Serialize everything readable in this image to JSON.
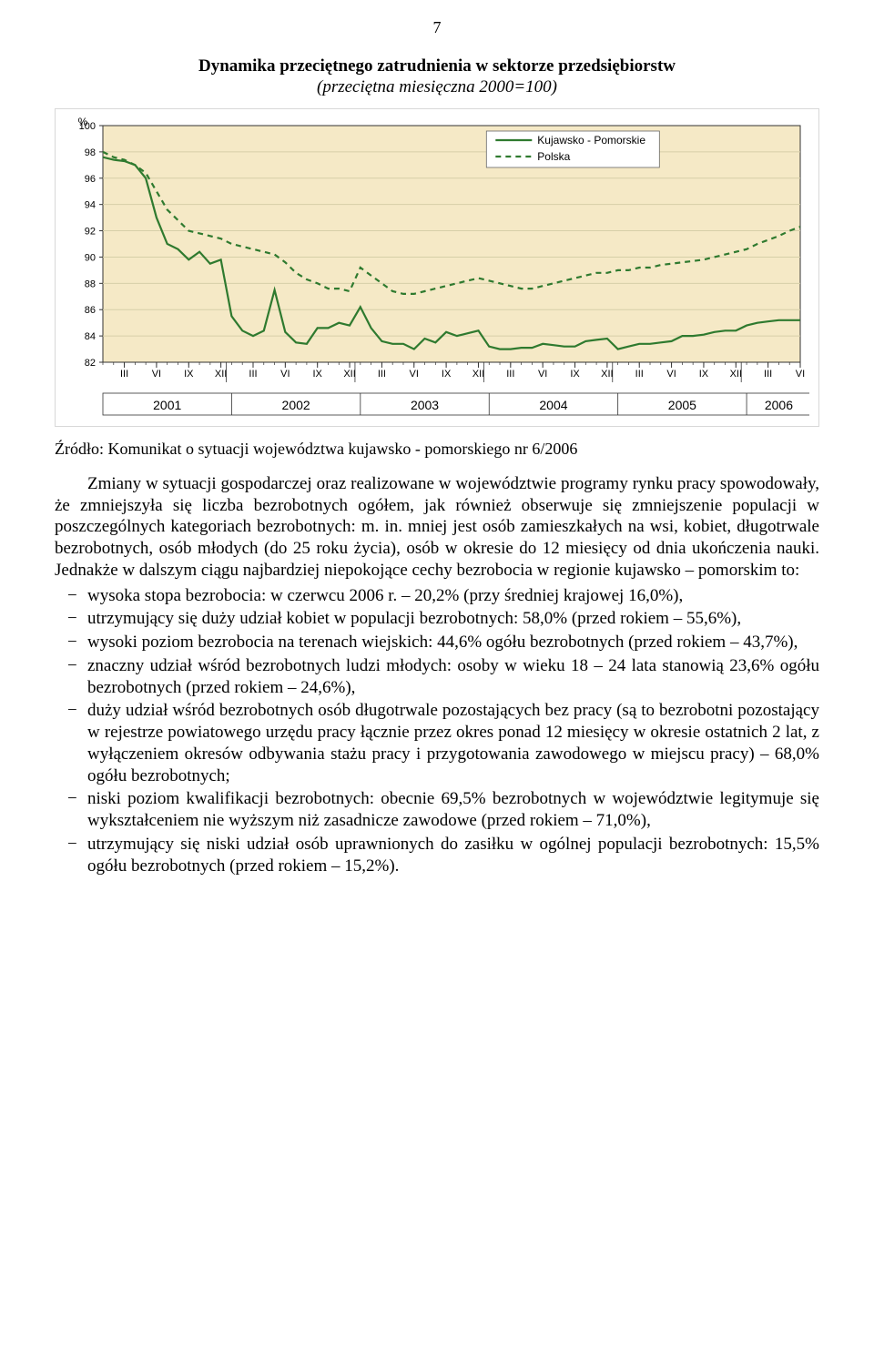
{
  "page_number": "7",
  "chart": {
    "type": "line",
    "title": "Dynamika przeciętnego zatrudnienia w sektorze przedsiębiorstw",
    "subtitle": "(przeciętna miesięczna 2000=100)",
    "y_axis": {
      "label": "%",
      "min": 82,
      "max": 100,
      "tick_step": 2,
      "ticks": [
        "82",
        "84",
        "86",
        "88",
        "90",
        "92",
        "94",
        "96",
        "98",
        "100"
      ]
    },
    "x_axis": {
      "ticks_per_year": [
        "III",
        "VI",
        "IX",
        "XII"
      ],
      "last_year_ticks": [
        "III",
        "VI"
      ],
      "years": [
        "2001",
        "2002",
        "2003",
        "2004",
        "2005",
        "2006"
      ]
    },
    "legend": [
      {
        "label": "Kujawsko - Pomorskie",
        "color": "#2f7a2f",
        "dash": "none"
      },
      {
        "label": "Polska",
        "color": "#2f7a2f",
        "dash": "6,5"
      }
    ],
    "series": {
      "kp": [
        97.6,
        97.4,
        97.3,
        97.0,
        96.0,
        93.0,
        91.0,
        90.6,
        89.8,
        90.4,
        89.5,
        89.8,
        85.5,
        84.4,
        84.0,
        84.4,
        87.5,
        84.3,
        83.5,
        83.4,
        84.6,
        84.6,
        85.0,
        84.8,
        86.2,
        84.6,
        83.6,
        83.4,
        83.4,
        83.0,
        83.8,
        83.5,
        84.3,
        84.0,
        84.2,
        84.4,
        83.2,
        83.0,
        83.0,
        83.1,
        83.1,
        83.4,
        83.3,
        83.2,
        83.2,
        83.6,
        83.7,
        83.8,
        83.0,
        83.2,
        83.4,
        83.4,
        83.5,
        83.6,
        84.0,
        84.0,
        84.1,
        84.3,
        84.4,
        84.4,
        84.8,
        85.0,
        85.1,
        85.2,
        85.2,
        85.2
      ],
      "pl": [
        98.0,
        97.6,
        97.4,
        97.0,
        96.4,
        95.0,
        93.6,
        92.8,
        92.0,
        91.8,
        91.6,
        91.4,
        91.0,
        90.8,
        90.6,
        90.4,
        90.2,
        89.6,
        88.8,
        88.3,
        88.0,
        87.6,
        87.6,
        87.4,
        89.2,
        88.6,
        88.0,
        87.4,
        87.2,
        87.2,
        87.4,
        87.6,
        87.8,
        88.0,
        88.2,
        88.4,
        88.2,
        88.0,
        87.8,
        87.6,
        87.6,
        87.8,
        88.0,
        88.2,
        88.4,
        88.6,
        88.8,
        88.8,
        89.0,
        89.0,
        89.2,
        89.2,
        89.4,
        89.5,
        89.6,
        89.7,
        89.8,
        90.0,
        90.2,
        90.4,
        90.6,
        91.0,
        91.3,
        91.6,
        92.0,
        92.3
      ]
    },
    "style": {
      "plot_bg": "#f5e9c6",
      "grid_color": "#d6cfa8",
      "axis_color": "#333333",
      "line_width": 2.2,
      "font_size_axis": 11,
      "font_size_legend": 12,
      "font_size_years": 14,
      "legend_box_stroke": "#666666",
      "legend_box_fill": "#ffffff"
    }
  },
  "source_text": "Źródło: Komunikat o sytuacji województwa kujawsko - pomorskiego nr 6/2006",
  "paragraph": "Zmiany w sytuacji gospodarczej oraz realizowane w województwie programy rynku pracy spowodowały, że zmniejszyła się liczba bezrobotnych ogółem, jak również obserwuje się zmniejszenie populacji w poszczególnych kategoriach bezrobotnych: m. in. mniej jest osób zamieszkałych na wsi, kobiet, długotrwale bezrobotnych, osób młodych (do 25 roku życia), osób w okresie do 12 miesięcy od dnia ukończenia nauki. Jednakże w dalszym ciągu najbardziej niepokojące cechy bezrobocia w regionie kujawsko – pomorskim to:",
  "bullets": [
    "wysoka stopa bezrobocia: w czerwcu 2006 r. – 20,2% (przy średniej krajowej 16,0%),",
    "utrzymujący się duży udział kobiet w populacji bezrobotnych: 58,0% (przed rokiem – 55,6%),",
    "wysoki poziom bezrobocia na terenach wiejskich: 44,6% ogółu bezrobotnych (przed rokiem – 43,7%),",
    "znaczny udział wśród bezrobotnych ludzi młodych: osoby w wieku 18 – 24 lata stanowią 23,6% ogółu bezrobotnych (przed rokiem – 24,6%),",
    "duży udział wśród bezrobotnych osób długotrwale pozostających bez pracy (są to bezrobotni pozostający w rejestrze powiatowego urzędu pracy łącznie przez okres ponad 12 miesięcy w okresie ostatnich 2 lat, z wyłączeniem okresów odbywania stażu pracy i przygotowania zawodowego w miejscu pracy) – 68,0% ogółu bezrobotnych;",
    "niski poziom kwalifikacji bezrobotnych: obecnie 69,5% bezrobotnych w województwie legitymuje się wykształceniem nie wyższym niż zasadnicze zawodowe (przed rokiem – 71,0%),",
    "utrzymujący się niski udział osób uprawnionych do zasiłku w ogólnej populacji bezrobotnych: 15,5% ogółu bezrobotnych (przed rokiem – 15,2%)."
  ]
}
